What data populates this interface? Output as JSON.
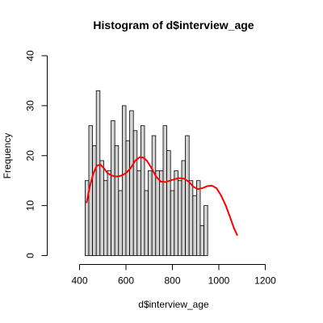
{
  "chart_data": {
    "type": "bar",
    "title": "Histogram of d$interview_age",
    "xlabel": "d$interview_age",
    "ylabel": "Frequency",
    "xlim": [
      400,
      1200
    ],
    "ylim": [
      0,
      40
    ],
    "xticks": [
      400,
      600,
      800,
      1000,
      1200
    ],
    "yticks": [
      0,
      10,
      20,
      30,
      40
    ],
    "bin_width": 16,
    "bins_start": 424,
    "frequencies": [
      15,
      26,
      22,
      33,
      19,
      15,
      17,
      27,
      22,
      13,
      30,
      23,
      29,
      25,
      17,
      26,
      13,
      17,
      24,
      17,
      17,
      26,
      21,
      13,
      17,
      15,
      19,
      24,
      15,
      12,
      15,
      6,
      10
    ],
    "density_curve": {
      "color": "#ff0000",
      "x": [
        430,
        445,
        460,
        475,
        490,
        505,
        520,
        540,
        560,
        580,
        600,
        620,
        640,
        660,
        675,
        690,
        710,
        730,
        750,
        770,
        790,
        810,
        830,
        850,
        870,
        890,
        910,
        930,
        950,
        970,
        990,
        1010,
        1030,
        1050,
        1065,
        1080
      ],
      "y": [
        10.5,
        14.0,
        16.5,
        18.0,
        18.2,
        17.5,
        16.5,
        16.0,
        15.8,
        16.0,
        16.5,
        17.5,
        19.0,
        19.7,
        19.6,
        19.0,
        17.5,
        15.8,
        14.8,
        14.7,
        15.0,
        15.3,
        15.5,
        15.4,
        14.8,
        13.8,
        13.3,
        13.5,
        13.9,
        14.0,
        13.5,
        12.0,
        10.0,
        7.5,
        5.5,
        4.0
      ]
    },
    "colors": {
      "bar_fill": "#d3d3d3",
      "bar_stroke": "#000000",
      "curve": "#ff0000"
    }
  }
}
